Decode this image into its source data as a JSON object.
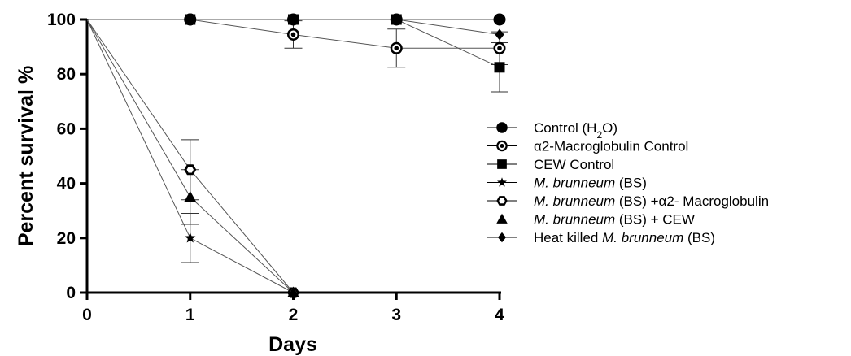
{
  "chart_data": {
    "type": "line",
    "xlabel": "Days",
    "ylabel": "Percent survival %",
    "xlim": [
      0,
      4
    ],
    "ylim": [
      0,
      100
    ],
    "x_ticks": [
      "0",
      "1",
      "2",
      "3",
      "4"
    ],
    "y_ticks": [
      "0",
      "20",
      "40",
      "60",
      "80",
      "100"
    ],
    "grid": false,
    "legend_position": "right",
    "series": [
      {
        "name": "Control (H2O)",
        "legend_parts": [
          {
            "t": "Control (H"
          },
          {
            "t": "2",
            "sub": true
          },
          {
            "t": "O)"
          }
        ],
        "marker": "circle",
        "x": [
          0,
          1,
          2,
          3,
          4
        ],
        "y": [
          100,
          100,
          100,
          100,
          100
        ],
        "err": [
          0,
          0,
          0,
          0,
          0
        ]
      },
      {
        "name": " α2-Macroglobulin Control",
        "legend_parts": [
          {
            "t": " α2-Macroglobulin Control"
          }
        ],
        "marker": "target",
        "x": [
          0,
          1,
          2,
          3,
          4
        ],
        "y": [
          100,
          100,
          94.5,
          89.5,
          89.5
        ],
        "err": [
          0,
          0,
          5,
          7,
          6
        ]
      },
      {
        "name": "CEW Control",
        "legend_parts": [
          {
            "t": "CEW Control"
          }
        ],
        "marker": "square",
        "x": [
          0,
          1,
          2,
          3,
          4
        ],
        "y": [
          100,
          100,
          100,
          100,
          82.5
        ],
        "err": [
          0,
          0,
          0,
          0,
          9
        ]
      },
      {
        "name": "M. brunneum (BS)",
        "legend_parts": [
          {
            "t": "M. brunneum",
            "i": true
          },
          {
            "t": " (BS)"
          }
        ],
        "marker": "star",
        "x": [
          0,
          1,
          2
        ],
        "y": [
          100,
          20,
          0
        ],
        "err": [
          0,
          9,
          0
        ]
      },
      {
        "name": "M. brunneum (BS) +α2- Macroglobulin",
        "legend_parts": [
          {
            "t": "M. brunneum",
            "i": true
          },
          {
            "t": " (BS) +α2- Macroglobulin"
          }
        ],
        "marker": "hexagon",
        "x": [
          0,
          1,
          2
        ],
        "y": [
          100,
          45,
          0
        ],
        "err": [
          0,
          11,
          0
        ]
      },
      {
        "name": "M. brunneum (BS) + CEW",
        "legend_parts": [
          {
            "t": "M. brunneum",
            "i": true
          },
          {
            "t": " (BS) + CEW"
          }
        ],
        "marker": "triangle",
        "x": [
          0,
          1,
          2
        ],
        "y": [
          100,
          35,
          0
        ],
        "err": [
          0,
          10,
          0
        ]
      },
      {
        "name": "Heat killed M. brunneum (BS)",
        "legend_parts": [
          {
            "t": "Heat killed "
          },
          {
            "t": "M. brunneum",
            "i": true
          },
          {
            "t": " (BS)"
          }
        ],
        "marker": "diamond",
        "x": [
          0,
          1,
          2,
          3,
          4
        ],
        "y": [
          100,
          100,
          100,
          100,
          94.5
        ],
        "err": [
          0,
          0,
          0,
          0,
          0
        ]
      }
    ]
  }
}
